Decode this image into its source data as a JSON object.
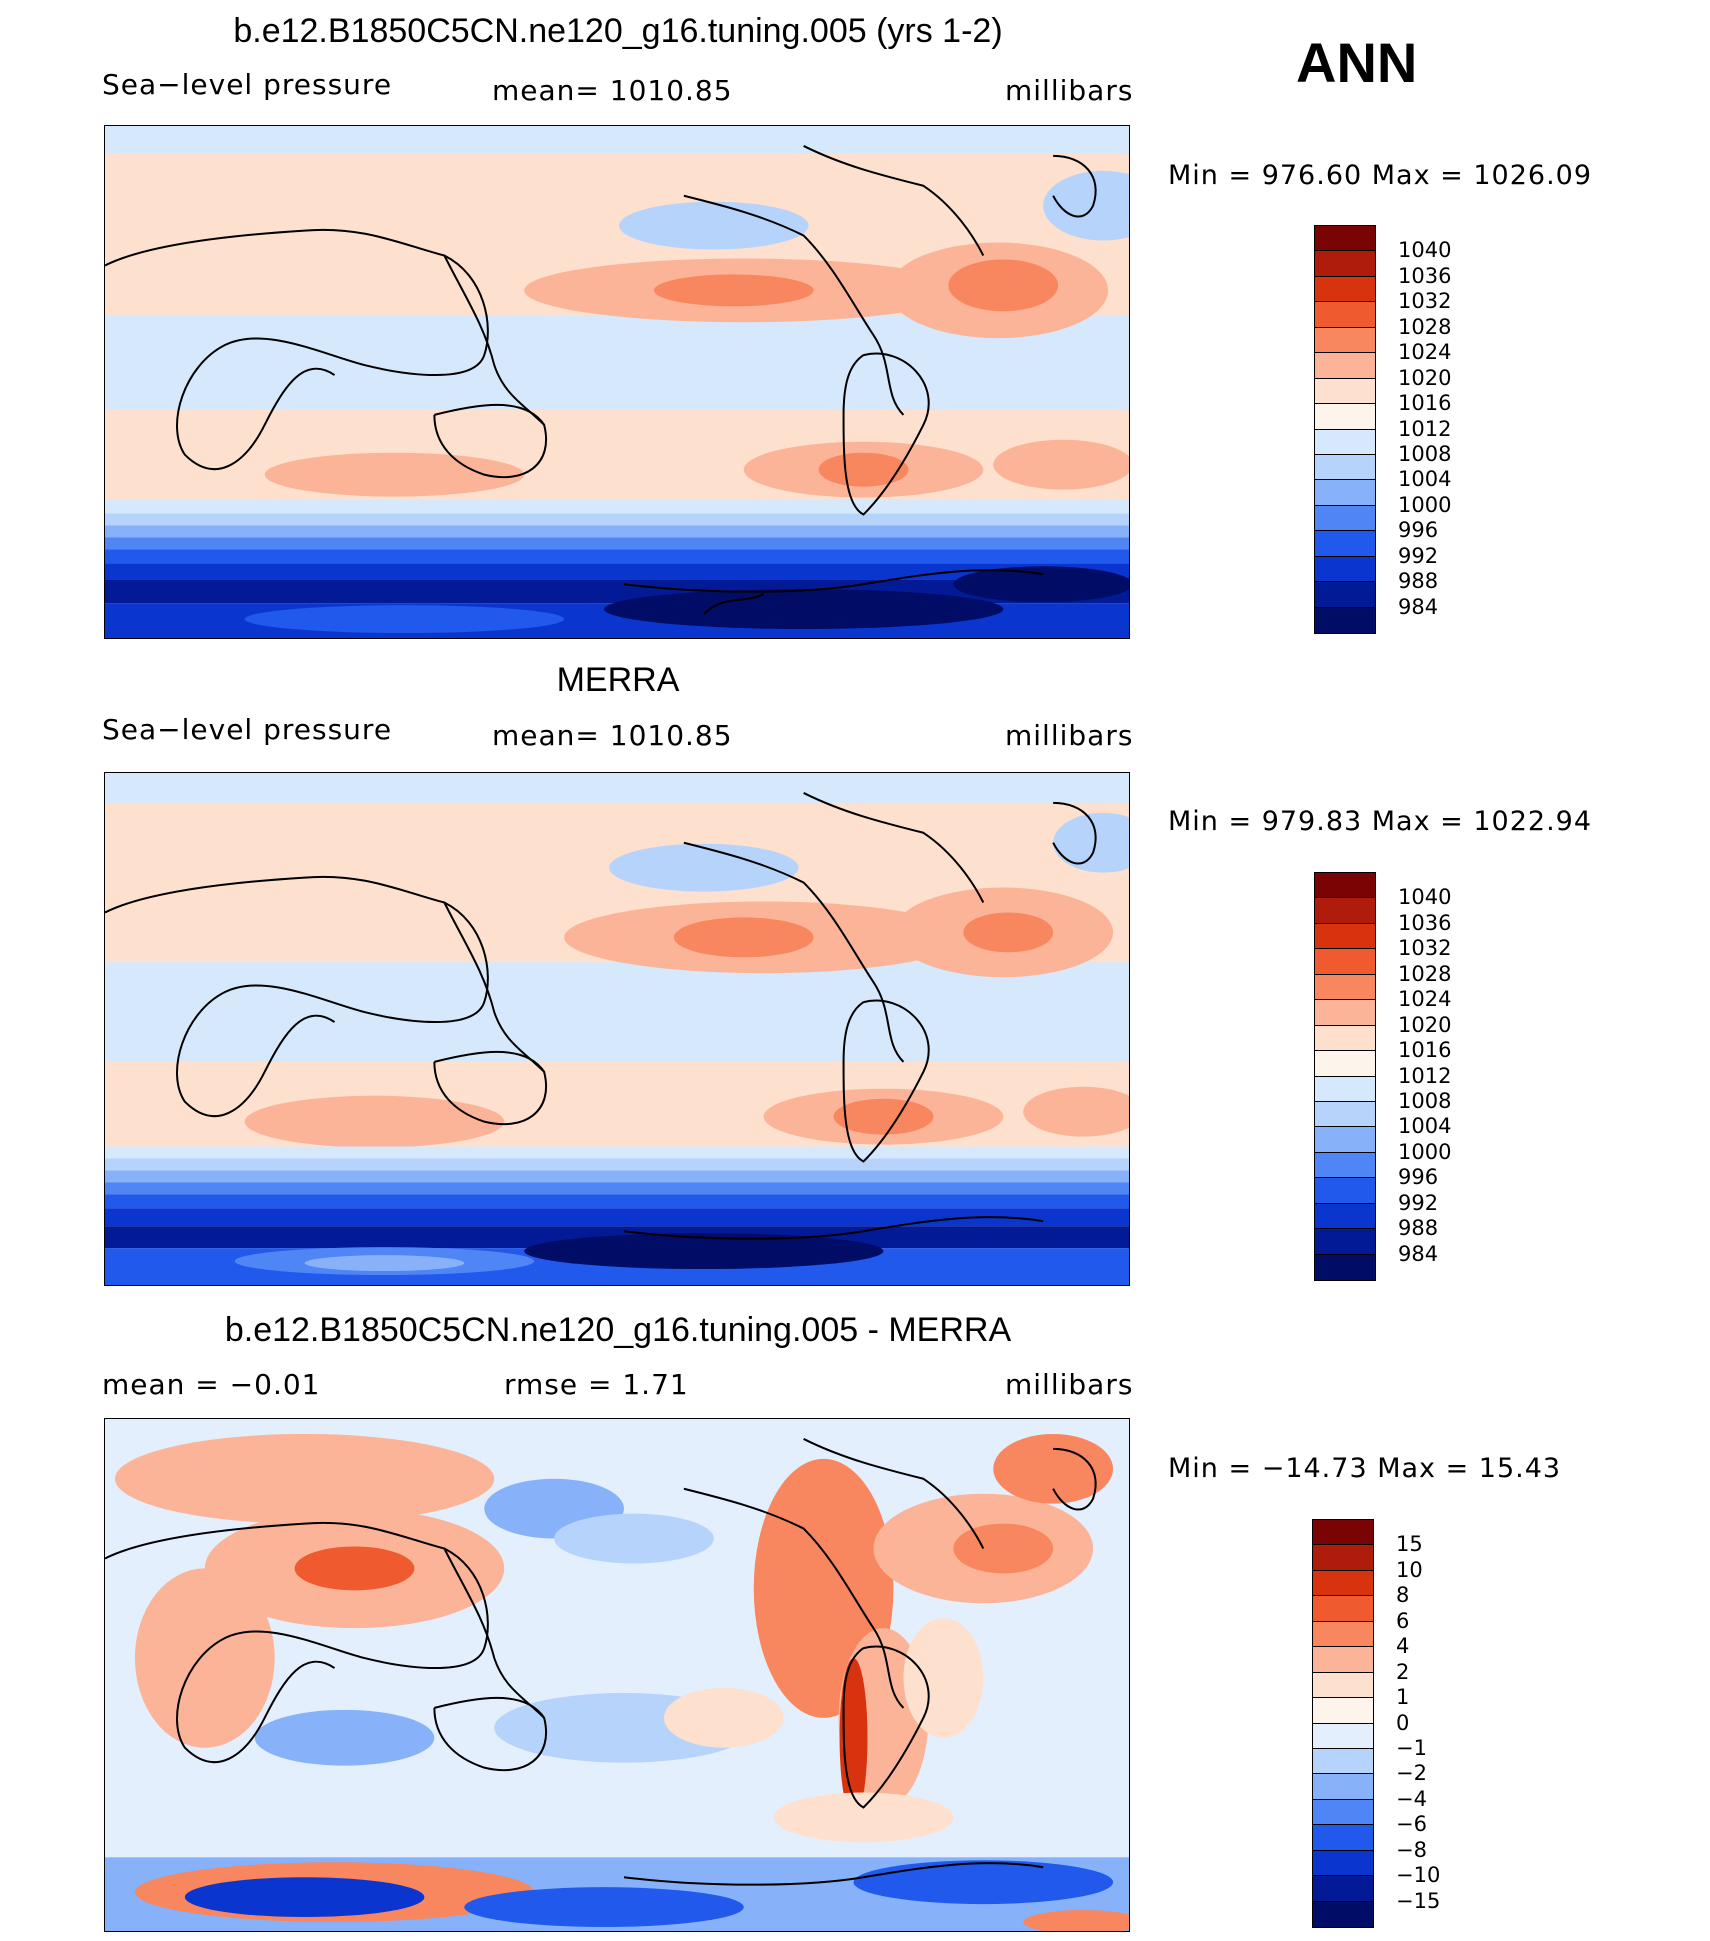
{
  "page": {
    "season_label": "ANN",
    "panels": [
      {
        "id": "model",
        "title": "b.e12.B1850C5CN.ne120_g16.tuning.005 (yrs 1-2)",
        "left_label": "Sea−level pressure",
        "center_label": "mean=  1010.85",
        "right_label": "millibars",
        "minmax": "Min  =  976.60  Max  =  1026.09",
        "colorbar": {
          "levels": [
            "1040",
            "1036",
            "1032",
            "1028",
            "1024",
            "1020",
            "1016",
            "1012",
            "1008",
            "1004",
            "1000",
            "996",
            "992",
            "988",
            "984"
          ],
          "colors": [
            "#7a0403",
            "#b01c0c",
            "#d8330f",
            "#ef5a2f",
            "#f8865e",
            "#fbb497",
            "#fde0cd",
            "#fdf4ec",
            "#d6e8fb",
            "#b6d3fb",
            "#87b2f9",
            "#4f85f4",
            "#2059ec",
            "#0a36cf",
            "#031a97",
            "#010c66"
          ]
        }
      },
      {
        "id": "obs",
        "title": "MERRA",
        "left_label": "Sea−level pressure",
        "center_label": "mean=  1010.85",
        "right_label": "millibars",
        "minmax": "Min  =  979.83  Max  =  1022.94",
        "colorbar": {
          "levels": [
            "1040",
            "1036",
            "1032",
            "1028",
            "1024",
            "1020",
            "1016",
            "1012",
            "1008",
            "1004",
            "1000",
            "996",
            "992",
            "988",
            "984"
          ],
          "colors": [
            "#7a0403",
            "#b01c0c",
            "#d8330f",
            "#ef5a2f",
            "#f8865e",
            "#fbb497",
            "#fde0cd",
            "#fdf4ec",
            "#d6e8fb",
            "#b6d3fb",
            "#87b2f9",
            "#4f85f4",
            "#2059ec",
            "#0a36cf",
            "#031a97",
            "#010c66"
          ]
        }
      },
      {
        "id": "diff",
        "title": "b.e12.B1850C5CN.ne120_g16.tuning.005 - MERRA",
        "left_label": "mean  =    −0.01",
        "center_label": "rmse  =      1.71",
        "right_label": "millibars",
        "minmax": "Min  =  −14.73  Max  =     15.43",
        "colorbar": {
          "levels": [
            "15",
            "10",
            "8",
            "6",
            "4",
            "2",
            "1",
            "0",
            "−1",
            "−2",
            "−4",
            "−6",
            "−8",
            "−10",
            "−15"
          ],
          "colors": [
            "#7a0403",
            "#b01c0c",
            "#d8330f",
            "#ef5a2f",
            "#f8865e",
            "#fbb497",
            "#fde0cd",
            "#fdf4ec",
            "#e4effd",
            "#b6d3fb",
            "#87b2f9",
            "#4f85f4",
            "#2059ec",
            "#0a36cf",
            "#031a97",
            "#010c66"
          ]
        }
      }
    ]
  }
}
